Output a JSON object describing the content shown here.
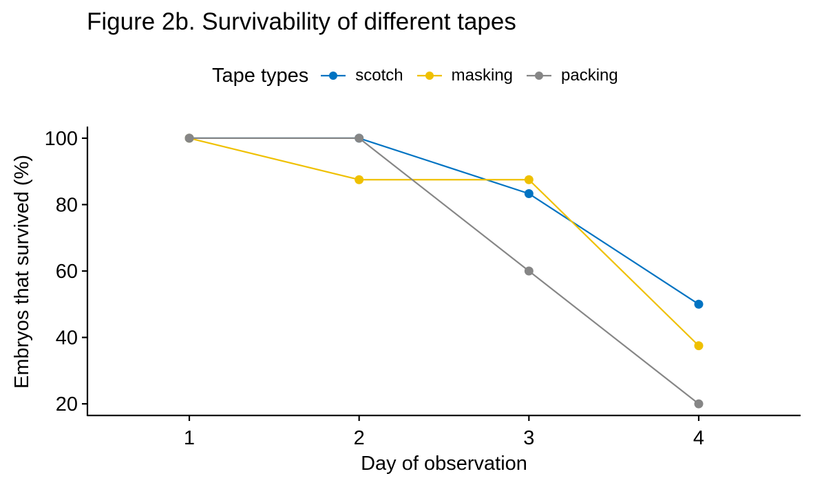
{
  "chart_data": {
    "type": "line",
    "title": "Figure 2b. Survivability of different tapes",
    "xlabel": "Day of observation",
    "ylabel": "Embryos that survived (%)",
    "x": [
      1,
      2,
      3,
      4
    ],
    "x_ticks": [
      "1",
      "2",
      "3",
      "4"
    ],
    "xlim": [
      0.4,
      4.6
    ],
    "y_ticks": [
      "20",
      "40",
      "60",
      "80",
      "100"
    ],
    "ylim": [
      16.5,
      103.5
    ],
    "grid": false,
    "legend": {
      "title": "Tape types",
      "placement": "top"
    },
    "series": [
      {
        "name": "scotch",
        "color": "#0073C2",
        "values": [
          100,
          100,
          83.3,
          50
        ]
      },
      {
        "name": "masking",
        "color": "#EFC000",
        "values": [
          100,
          87.5,
          87.5,
          37.5
        ]
      },
      {
        "name": "packing",
        "color": "#868686",
        "values": [
          100,
          100,
          60,
          20
        ]
      }
    ]
  }
}
